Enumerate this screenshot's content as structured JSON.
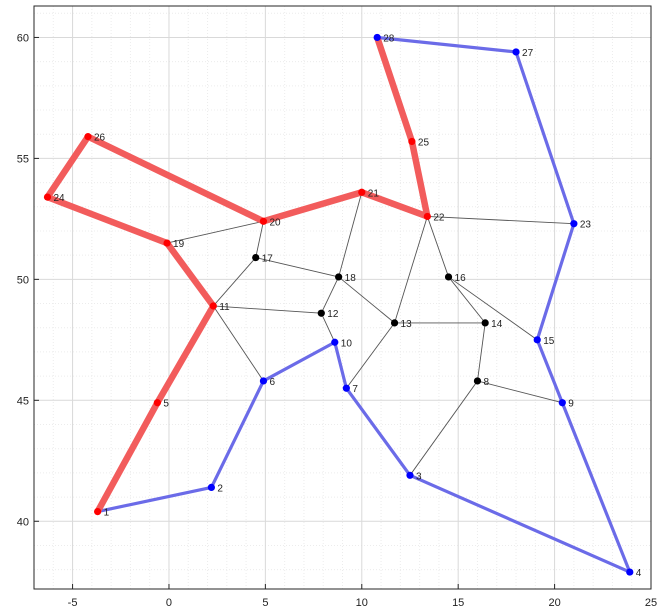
{
  "chart_data": {
    "type": "scatter",
    "title": "",
    "xlabel": "",
    "ylabel": "",
    "xlim": [
      -7,
      25
    ],
    "ylim": [
      37.2,
      61.3
    ],
    "xticks": [
      -5,
      0,
      5,
      10,
      15,
      20,
      25
    ],
    "yticks": [
      40,
      45,
      50,
      55,
      60
    ],
    "grid": true,
    "minor_grid": true,
    "colors": {
      "red_route": "#f25c5c",
      "blue_route": "#6b6be8",
      "red_node": "#ff0000",
      "blue_node": "#0000ff",
      "black_node": "#000000",
      "edge": "#555555"
    },
    "nodes": [
      {
        "id": 1,
        "x": -3.7,
        "y": 40.4,
        "color": "red"
      },
      {
        "id": 2,
        "x": 2.2,
        "y": 41.4,
        "color": "blue"
      },
      {
        "id": 3,
        "x": 12.5,
        "y": 41.9,
        "color": "blue"
      },
      {
        "id": 4,
        "x": 23.9,
        "y": 37.9,
        "color": "blue"
      },
      {
        "id": 5,
        "x": -0.6,
        "y": 44.9,
        "color": "red"
      },
      {
        "id": 6,
        "x": 4.9,
        "y": 45.8,
        "color": "blue"
      },
      {
        "id": 7,
        "x": 9.2,
        "y": 45.5,
        "color": "blue"
      },
      {
        "id": 8,
        "x": 16.0,
        "y": 45.8,
        "color": "black"
      },
      {
        "id": 9,
        "x": 20.4,
        "y": 44.9,
        "color": "blue"
      },
      {
        "id": 10,
        "x": 8.6,
        "y": 47.4,
        "color": "blue"
      },
      {
        "id": 11,
        "x": 2.3,
        "y": 48.9,
        "color": "red"
      },
      {
        "id": 12,
        "x": 7.9,
        "y": 48.6,
        "color": "black"
      },
      {
        "id": 13,
        "x": 11.7,
        "y": 48.2,
        "color": "black"
      },
      {
        "id": 14,
        "x": 16.4,
        "y": 48.2,
        "color": "black"
      },
      {
        "id": 15,
        "x": 19.1,
        "y": 47.5,
        "color": "blue"
      },
      {
        "id": 16,
        "x": 14.5,
        "y": 50.1,
        "color": "black"
      },
      {
        "id": 17,
        "x": 4.5,
        "y": 50.9,
        "color": "black"
      },
      {
        "id": 18,
        "x": 8.8,
        "y": 50.1,
        "color": "black"
      },
      {
        "id": 19,
        "x": -0.1,
        "y": 51.5,
        "color": "red"
      },
      {
        "id": 20,
        "x": 4.9,
        "y": 52.4,
        "color": "red"
      },
      {
        "id": 21,
        "x": 10.0,
        "y": 53.6,
        "color": "red"
      },
      {
        "id": 22,
        "x": 13.4,
        "y": 52.6,
        "color": "red"
      },
      {
        "id": 23,
        "x": 21.0,
        "y": 52.3,
        "color": "blue"
      },
      {
        "id": 24,
        "x": -6.3,
        "y": 53.4,
        "color": "red"
      },
      {
        "id": 25,
        "x": 12.6,
        "y": 55.7,
        "color": "red"
      },
      {
        "id": 26,
        "x": -4.2,
        "y": 55.9,
        "color": "red"
      },
      {
        "id": 27,
        "x": 18.0,
        "y": 59.4,
        "color": "blue"
      },
      {
        "id": 28,
        "x": 10.8,
        "y": 60.0,
        "color": "blue"
      }
    ],
    "edges": [
      [
        19,
        20
      ],
      [
        20,
        17
      ],
      [
        17,
        11
      ],
      [
        17,
        18
      ],
      [
        11,
        6
      ],
      [
        11,
        12
      ],
      [
        12,
        18
      ],
      [
        12,
        10
      ],
      [
        18,
        21
      ],
      [
        18,
        13
      ],
      [
        13,
        7
      ],
      [
        13,
        22
      ],
      [
        13,
        14
      ],
      [
        14,
        16
      ],
      [
        14,
        8
      ],
      [
        8,
        3
      ],
      [
        8,
        9
      ],
      [
        16,
        22
      ],
      [
        16,
        15
      ],
      [
        22,
        23
      ]
    ],
    "red_route": [
      1,
      5,
      11,
      19,
      24,
      26,
      20,
      21,
      22,
      25,
      28
    ],
    "blue_route": [
      1,
      2,
      6,
      10,
      7,
      3,
      4,
      9,
      15,
      23,
      27,
      28
    ]
  }
}
